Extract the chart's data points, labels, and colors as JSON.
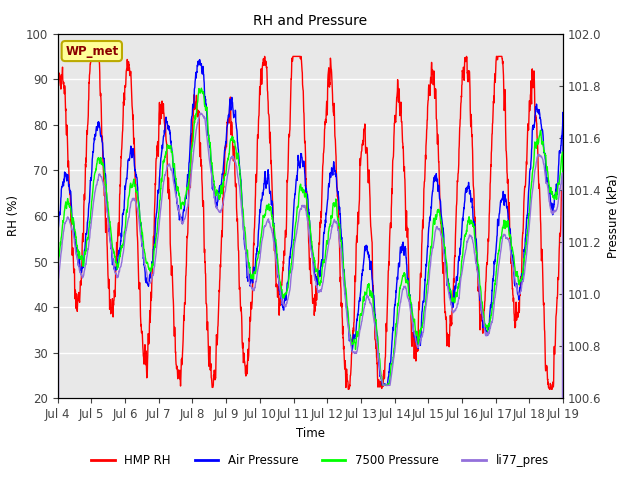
{
  "title": "RH and Pressure",
  "xlabel": "Time",
  "ylabel_left": "RH (%)",
  "ylabel_right": "Pressure (kPa)",
  "ylim_left": [
    20,
    100
  ],
  "ylim_right": [
    100.6,
    102.0
  ],
  "x_start_day": 4,
  "x_end_day": 19,
  "x_ticks": [
    4,
    5,
    6,
    7,
    8,
    9,
    10,
    11,
    12,
    13,
    14,
    15,
    16,
    17,
    18,
    19
  ],
  "x_tick_labels": [
    "Jul 4",
    "Jul 5",
    "Jul 6",
    "Jul 7",
    "Jul 8",
    "Jul 9",
    "Jul 10",
    "Jul 11",
    "Jul 12",
    "Jul 13",
    "Jul 14",
    "Jul 15",
    "Jul 16",
    "Jul 17",
    "Jul 18",
    "Jul 19"
  ],
  "yticks_left": [
    20,
    30,
    40,
    50,
    60,
    70,
    80,
    90,
    100
  ],
  "yticks_right": [
    100.6,
    100.8,
    101.0,
    101.2,
    101.4,
    101.6,
    101.8,
    102.0
  ],
  "line_colors": [
    "red",
    "blue",
    "lime",
    "mediumpurple"
  ],
  "line_labels": [
    "HMP RH",
    "Air Pressure",
    "7500 Pressure",
    "li77_pres"
  ],
  "plot_bg_color": "#e8e8e8",
  "fig_bg_color": "#ffffff",
  "watermark_text": "WP_met",
  "watermark_bg": "#ffff99",
  "watermark_border": "#bbaa00",
  "grid_color": "#ffffff",
  "grid_linewidth": 1.0,
  "line_width": 1.0,
  "font_size": 8.5,
  "title_fontsize": 10,
  "tick_color": "#444444",
  "right_tick_style": "dash"
}
